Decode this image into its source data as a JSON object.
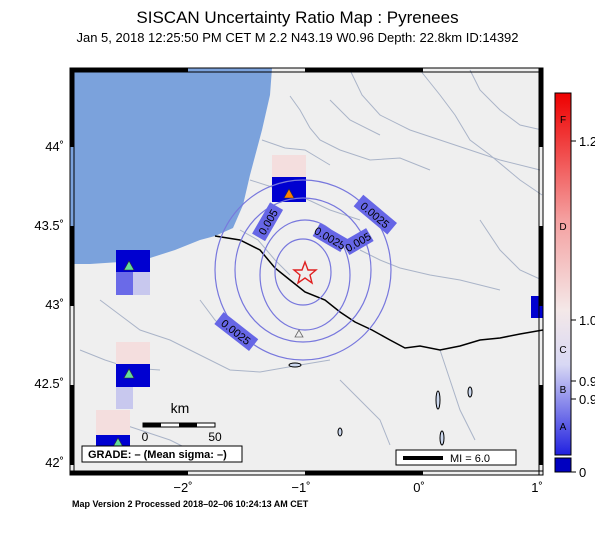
{
  "header": {
    "title": "SISCAN Uncertainty Ratio Map : Pyrenees",
    "subtitle": "Jan  5, 2018 12:25:50 PM CET   M 2.2   N43.19 W0.96   Depth: 22.8km   ID:14392"
  },
  "map": {
    "lon_ticks": [
      "−2˚",
      "−1˚",
      "0˚",
      "1˚"
    ],
    "lat_ticks": [
      "44˚",
      "43.5˚",
      "43˚",
      "42.5˚",
      "42˚"
    ],
    "contours": [
      "0.0025",
      "0.005",
      "0.0025",
      "0.005",
      "0.0025"
    ],
    "scale_label": "km",
    "scale_ticks": [
      "0",
      "50"
    ],
    "grade_text": "GRADE: – (Mean sigma: –)",
    "mi_legend": "MI = 6.0",
    "epicenter": {
      "lat": 43.19,
      "lon": -0.96
    }
  },
  "colorbar": {
    "grades": [
      "F",
      "D",
      "C",
      "B",
      "A"
    ],
    "values": [
      "1.2",
      "1.0",
      "0.9",
      "0.9",
      "0"
    ]
  },
  "colors": {
    "sea": "#7ba2dc",
    "land": "#efefef",
    "contour": "#7777dd",
    "contour_label_bg": "#6666e6",
    "grid_blue": "#0000d0",
    "star": "#e02020"
  },
  "footer": "Map Version 2 Processed 2018–02–06 10:24:13 AM CET"
}
